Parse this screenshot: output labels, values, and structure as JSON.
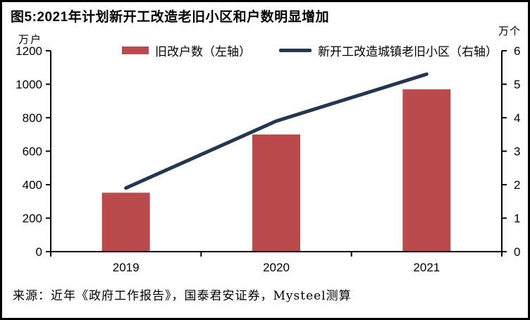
{
  "title": "图5:2021年计划新开工改造老旧小区和户数明显增加",
  "source": "来源：近年《政府工作报告》，国泰君安证券，Mysteel测算",
  "colors": {
    "bar": "#BB4A4C",
    "line": "#243751",
    "axis": "#000000",
    "background": "#FFFFFF",
    "border": "#000000"
  },
  "chart_data": {
    "type": "combo",
    "categories": [
      "2019",
      "2020",
      "2021"
    ],
    "series": [
      {
        "name": "旧改户数（左轴）",
        "type": "bar",
        "axis": "left",
        "values": [
          352,
          700,
          970
        ],
        "color": "#BB4A4C"
      },
      {
        "name": "新开工改造城镇老旧小区（右轴）",
        "type": "line",
        "axis": "right",
        "values": [
          1.9,
          3.9,
          5.3
        ],
        "color": "#243751"
      }
    ],
    "left_axis": {
      "unit_label": "万户",
      "min": 0,
      "max": 1200,
      "ticks": [
        0,
        200,
        400,
        600,
        800,
        1000,
        1200
      ]
    },
    "right_axis": {
      "unit_label": "万个",
      "min": 0,
      "max": 6,
      "ticks": [
        0,
        1,
        2,
        3,
        4,
        5,
        6
      ]
    },
    "legend_position": "top",
    "grid": false
  }
}
